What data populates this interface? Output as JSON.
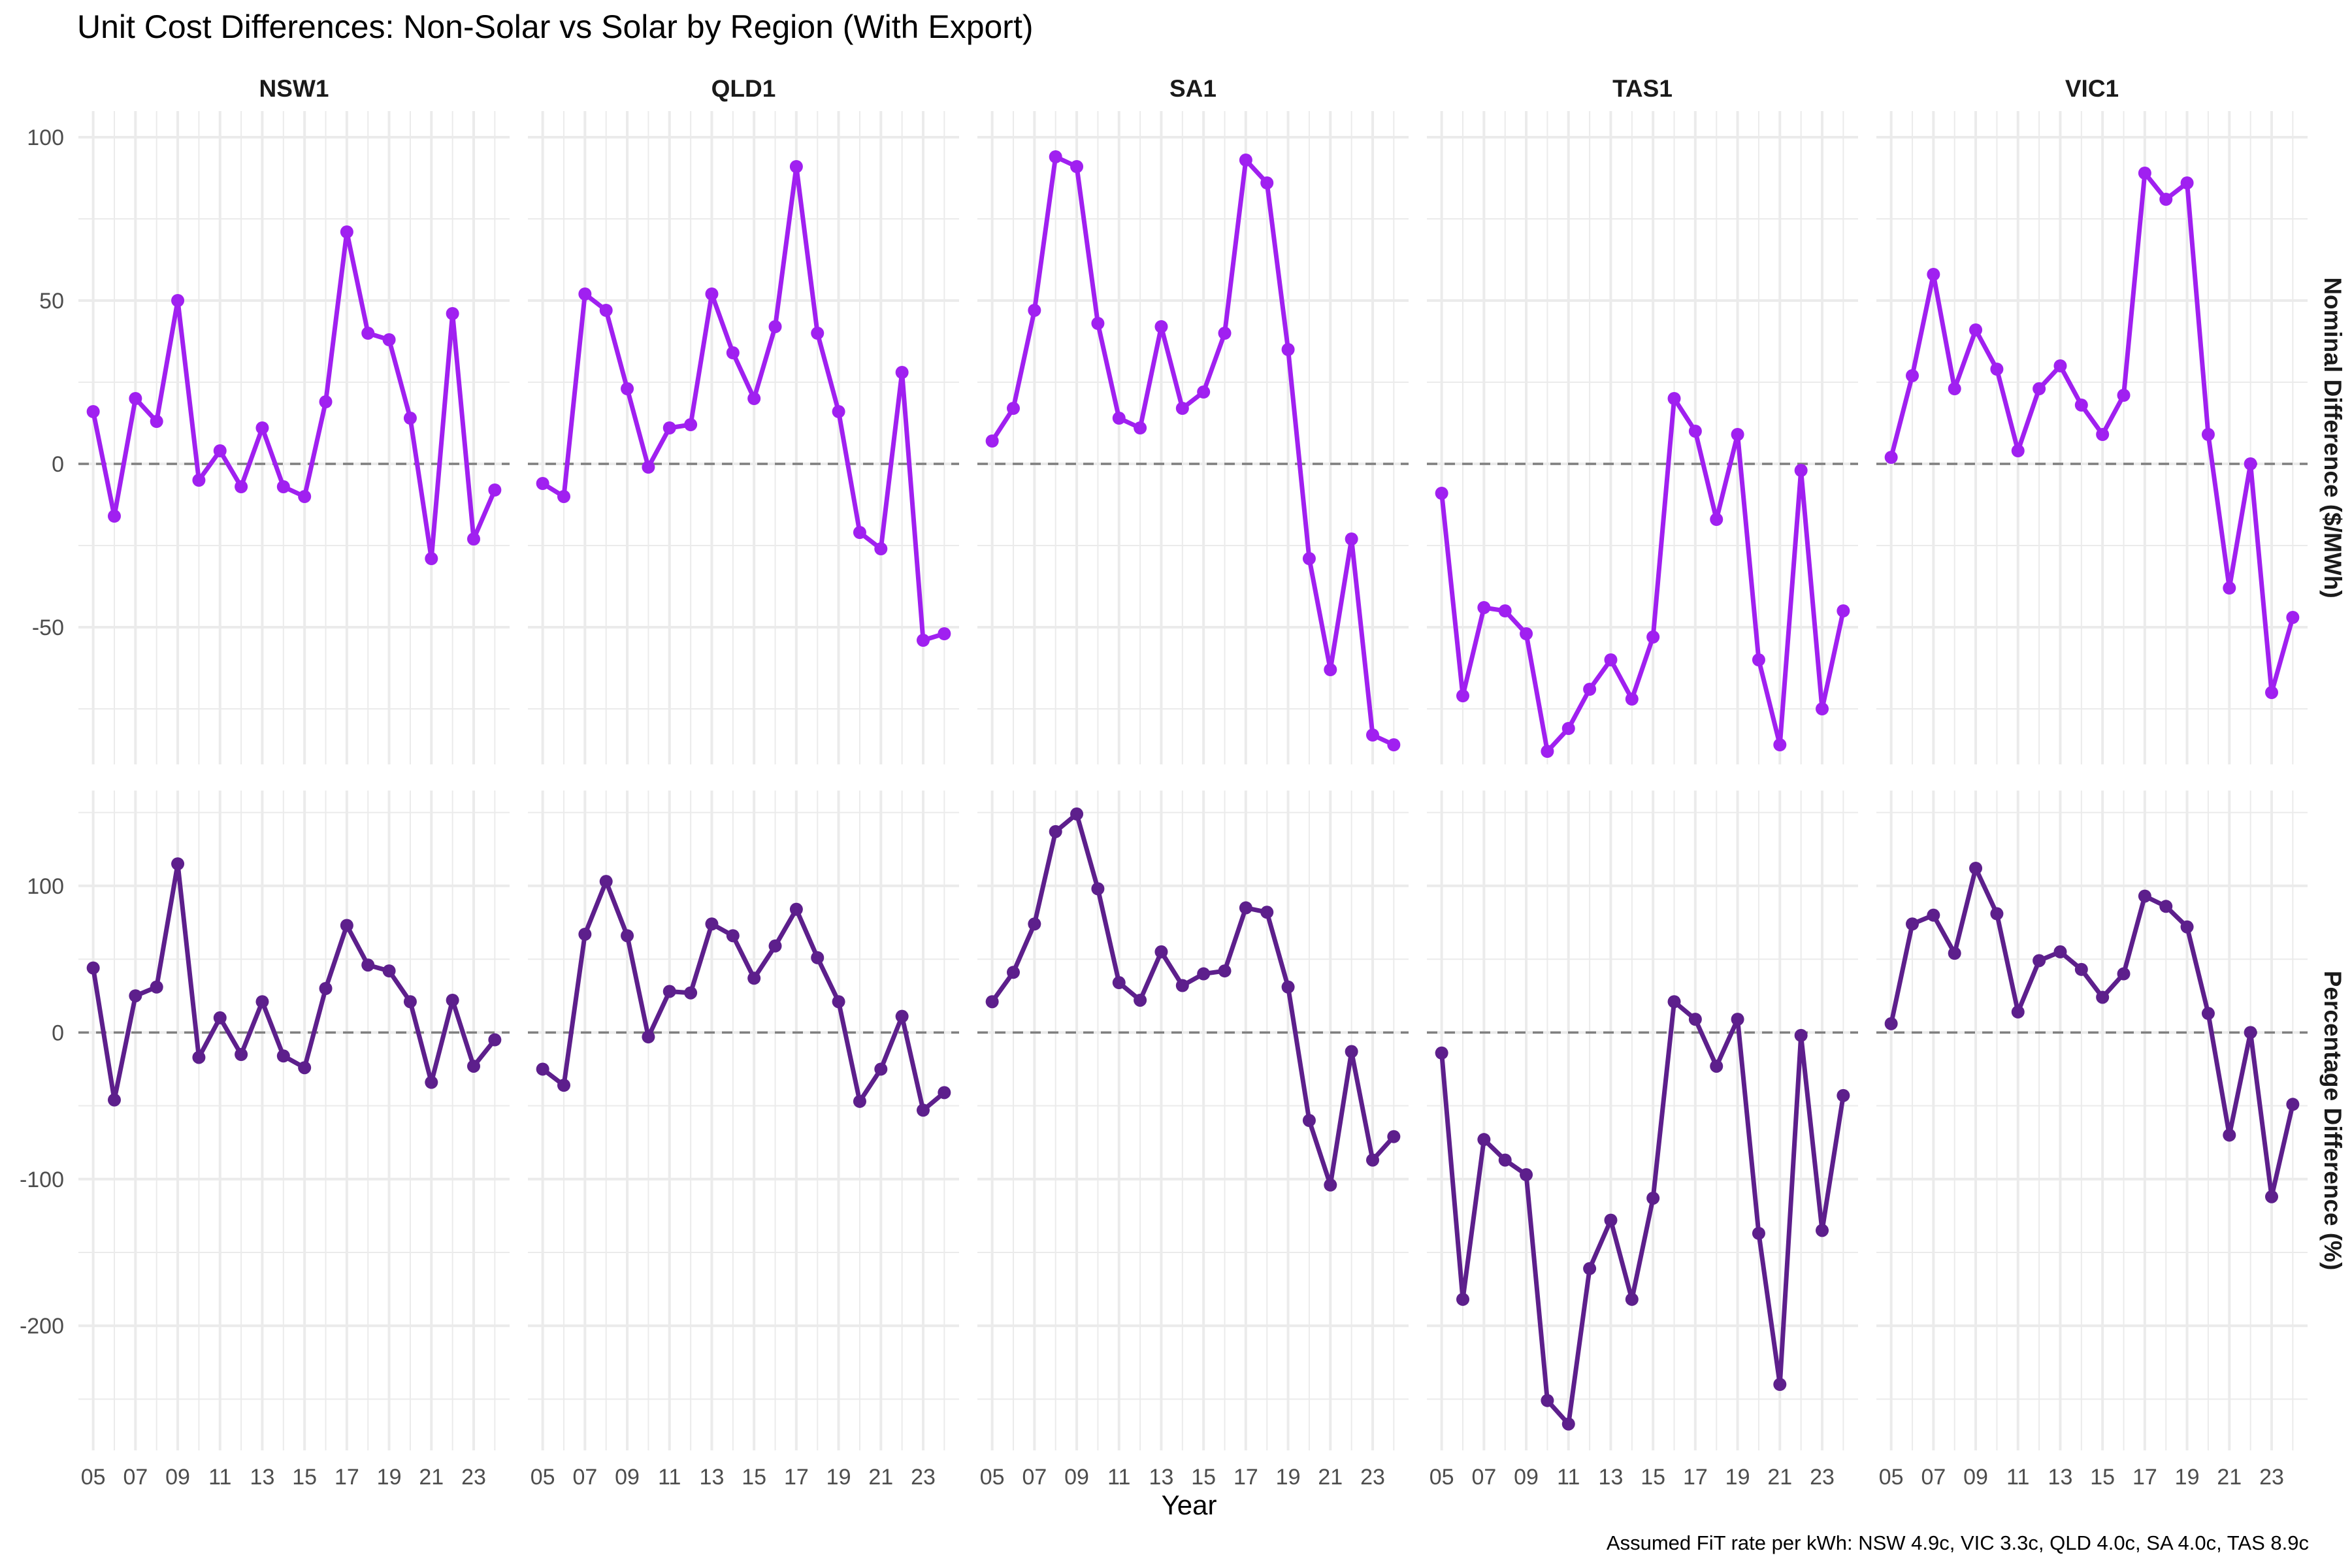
{
  "chart_data": {
    "type": "line",
    "title": "Unit Cost Differences: Non-Solar vs Solar by Region (With Export)",
    "caption": "Assumed FiT rate per kWh: NSW 4.9c, VIC 3.3c, QLD 4.0c, SA 4.0c, TAS 8.9c",
    "xlabel": "Year",
    "x": [
      5,
      6,
      7,
      8,
      9,
      10,
      11,
      12,
      13,
      14,
      15,
      16,
      17,
      18,
      19,
      20,
      21,
      22,
      23,
      24
    ],
    "x_tick_labels": [
      "05",
      "07",
      "09",
      "11",
      "13",
      "15",
      "17",
      "19",
      "21",
      "23"
    ],
    "x_tick_values": [
      5,
      7,
      9,
      11,
      13,
      15,
      17,
      19,
      21,
      23
    ],
    "xlim": [
      4.3,
      24.7
    ],
    "facets_columns": [
      "NSW1",
      "QLD1",
      "SA1",
      "TAS1",
      "VIC1"
    ],
    "reference_line": {
      "y": 0,
      "style": "dashed",
      "color": "#808080"
    },
    "grid": true,
    "rows": [
      {
        "label": "Nominal Difference ($/MWh)",
        "color": "#a020f0",
        "ylim": [
          -92,
          108
        ],
        "y_ticks": [
          -50,
          0,
          50,
          100
        ],
        "y_tick_labels": [
          "-50",
          "0",
          "50",
          "100"
        ],
        "series": {
          "NSW1": [
            16,
            -16,
            20,
            13,
            50,
            -5,
            4,
            -7,
            11,
            -7,
            -10,
            19,
            71,
            40,
            38,
            14,
            -29,
            46,
            -23,
            -8
          ],
          "QLD1": [
            -6,
            -10,
            52,
            47,
            23,
            -1,
            11,
            12,
            52,
            34,
            20,
            42,
            91,
            40,
            16,
            -21,
            -26,
            28,
            -54,
            -52
          ],
          "SA1": [
            7,
            17,
            47,
            94,
            91,
            43,
            14,
            11,
            42,
            17,
            22,
            40,
            93,
            86,
            35,
            -29,
            -63,
            -23,
            -83,
            -86
          ],
          "TAS1": [
            -9,
            -71,
            -44,
            -45,
            -52,
            -88,
            -81,
            -69,
            -60,
            -72,
            -53,
            20,
            10,
            -17,
            9,
            -60,
            -86,
            -2,
            -75,
            -45
          ],
          "VIC1": [
            2,
            27,
            58,
            23,
            41,
            29,
            4,
            23,
            30,
            18,
            9,
            21,
            89,
            81,
            86,
            9,
            -38,
            0,
            -70,
            -47
          ]
        }
      },
      {
        "label": "Percentage Difference (%)",
        "color": "#5d1f8c",
        "ylim": [
          -285,
          165
        ],
        "y_ticks": [
          -200,
          -100,
          0,
          100
        ],
        "y_tick_labels": [
          "-200",
          "-100",
          "0",
          "100"
        ],
        "series": {
          "NSW1": [
            44,
            -46,
            25,
            31,
            115,
            -17,
            10,
            -15,
            21,
            -16,
            -24,
            30,
            73,
            46,
            42,
            21,
            -34,
            22,
            -23,
            -5
          ],
          "QLD1": [
            -25,
            -36,
            67,
            103,
            66,
            -3,
            28,
            27,
            74,
            66,
            37,
            59,
            84,
            51,
            21,
            -47,
            -25,
            11,
            -53,
            -41
          ],
          "SA1": [
            21,
            41,
            74,
            137,
            149,
            98,
            34,
            22,
            55,
            32,
            40,
            42,
            85,
            82,
            31,
            -60,
            -104,
            -13,
            -87,
            -71
          ],
          "TAS1": [
            -14,
            -182,
            -73,
            -87,
            -97,
            -251,
            -267,
            -161,
            -128,
            -182,
            -113,
            21,
            9,
            -23,
            9,
            -137,
            -240,
            -2,
            -135,
            -43
          ],
          "VIC1": [
            6,
            74,
            80,
            54,
            112,
            81,
            14,
            49,
            55,
            43,
            24,
            40,
            93,
            86,
            72,
            13,
            -70,
            0,
            -112,
            -49
          ]
        }
      }
    ]
  }
}
